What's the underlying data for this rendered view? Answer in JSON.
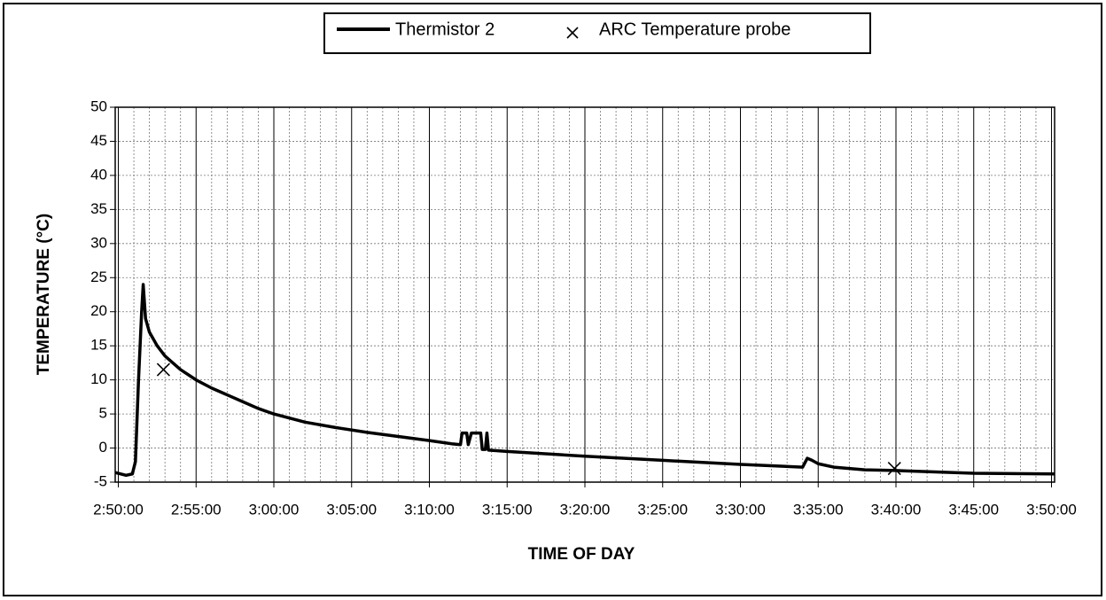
{
  "chart_data": {
    "type": "line",
    "xlabel": "TIME OF DAY",
    "ylabel": "TEMPERATURE (°C)",
    "xlim": [
      169.8,
      230.2
    ],
    "ylim": [
      -5,
      50
    ],
    "xticks": [
      {
        "value": 170,
        "label": "2:50:00"
      },
      {
        "value": 175,
        "label": "2:55:00"
      },
      {
        "value": 180,
        "label": "3:00:00"
      },
      {
        "value": 185,
        "label": "3:05:00"
      },
      {
        "value": 190,
        "label": "3:10:00"
      },
      {
        "value": 195,
        "label": "3:15:00"
      },
      {
        "value": 200,
        "label": "3:20:00"
      },
      {
        "value": 205,
        "label": "3:25:00"
      },
      {
        "value": 210,
        "label": "3:30:00"
      },
      {
        "value": 215,
        "label": "3:35:00"
      },
      {
        "value": 220,
        "label": "3:40:00"
      },
      {
        "value": 225,
        "label": "3:45:00"
      },
      {
        "value": 230,
        "label": "3:50:00"
      }
    ],
    "yticks": [
      -5,
      0,
      5,
      10,
      15,
      20,
      25,
      30,
      35,
      40,
      45,
      50
    ],
    "grid": true,
    "series": [
      {
        "name": "Thermistor 2",
        "color": "#000000",
        "x": [
          169.8,
          170.5,
          170.9,
          171.1,
          171.3,
          171.5,
          171.6,
          171.75,
          172,
          172.5,
          173,
          174,
          175,
          176,
          177,
          178,
          179,
          180,
          182,
          184,
          186,
          188,
          190,
          191.5,
          192,
          192.1,
          192.4,
          192.5,
          192.7,
          193.3,
          193.4,
          193.6,
          193.7,
          193.8,
          195,
          200,
          205,
          210,
          214,
          214.3,
          214.6,
          215,
          216,
          218,
          220,
          225,
          230.2
        ],
        "values": [
          -3.6,
          -4,
          -3.8,
          -2,
          10,
          20,
          24,
          19,
          17,
          15,
          13.5,
          11.5,
          10,
          8.8,
          7.8,
          6.8,
          5.8,
          5,
          3.8,
          3,
          2.3,
          1.7,
          1.1,
          0.6,
          0.5,
          2.2,
          2.2,
          0.5,
          2.2,
          2.2,
          -0.2,
          -0.2,
          2.2,
          -0.3,
          -0.5,
          -1.2,
          -1.8,
          -2.4,
          -2.8,
          -1.5,
          -1.8,
          -2.3,
          -2.8,
          -3.2,
          -3.3,
          -3.7,
          -3.8
        ]
      },
      {
        "name": "ARC Temperature probe",
        "color": "#000000",
        "marker": "x",
        "x": [
          172.9,
          219.9
        ],
        "values": [
          11.5,
          -3
        ]
      }
    ]
  }
}
